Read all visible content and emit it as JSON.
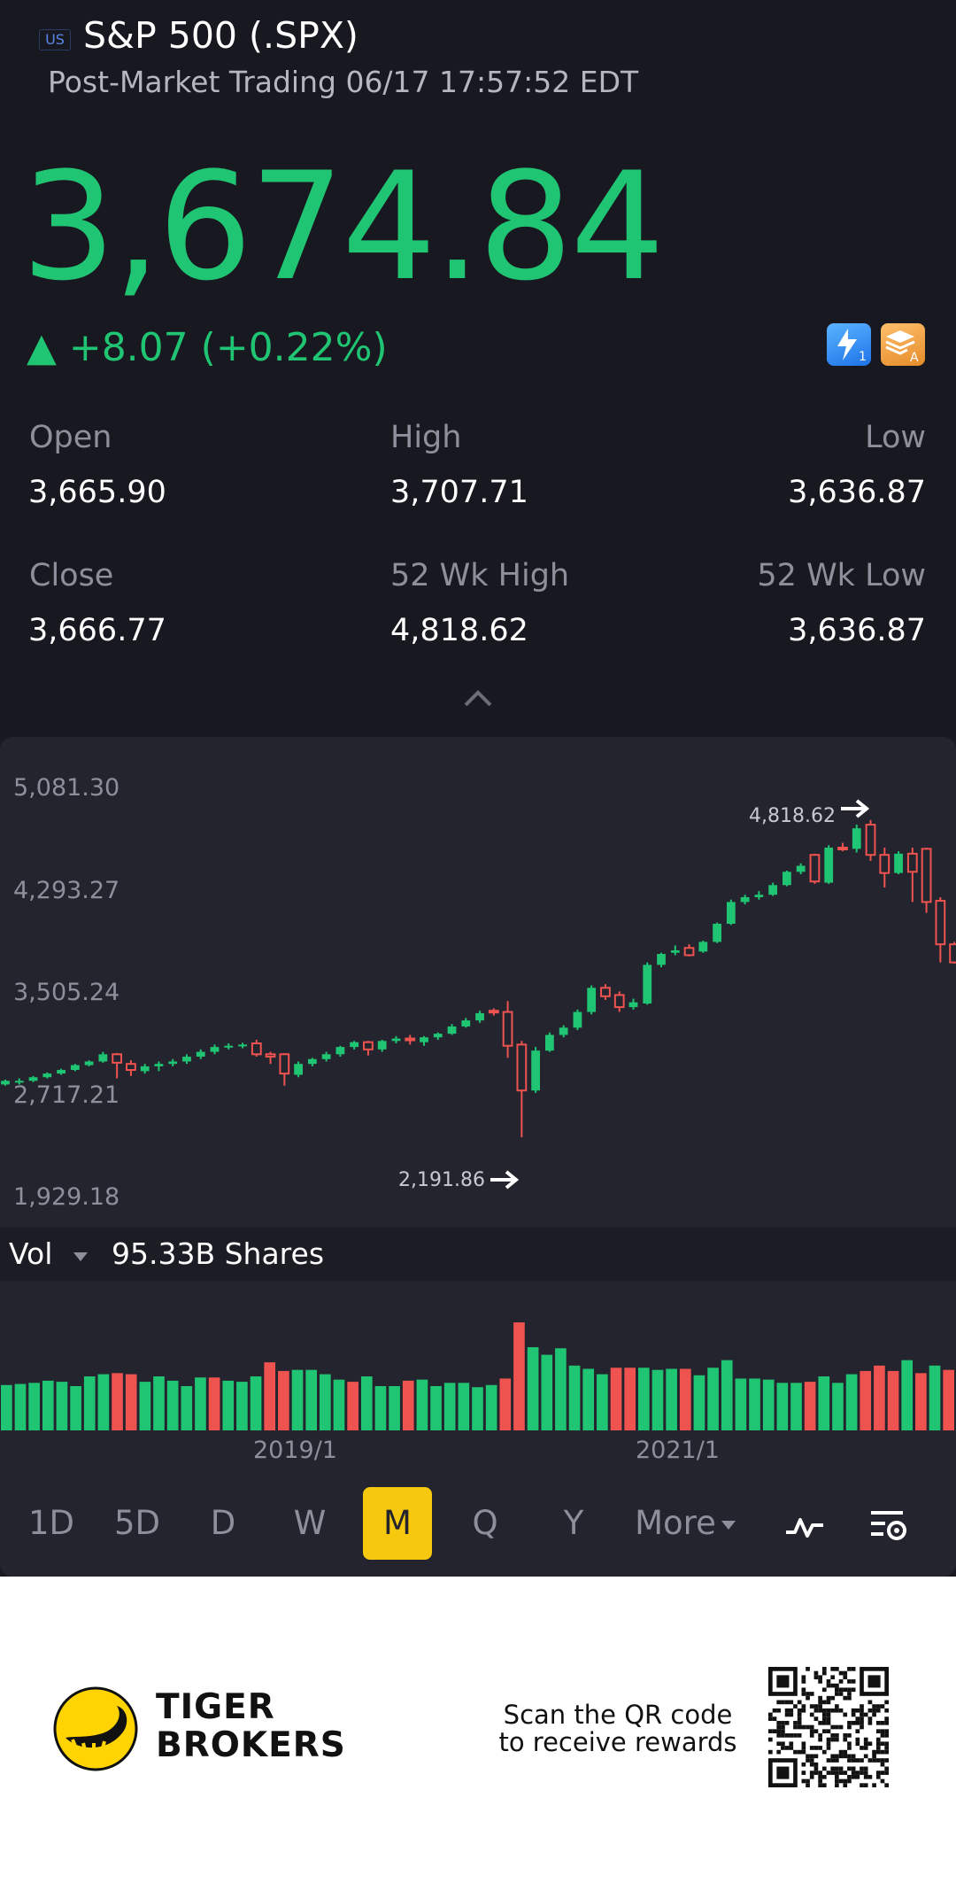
{
  "header": {
    "market_badge": "US",
    "title": "S&P 500 (.SPX)",
    "subtitle": "Post-Market Trading 06/17 17:57:52 EDT"
  },
  "quote": {
    "price": "3,674.84",
    "change": "▲ +8.07 (+0.22%)",
    "accent_color": "#20c573",
    "down_color": "#ef5350"
  },
  "badges": {
    "lightning_level": "1",
    "stack_grade": "A"
  },
  "stats": {
    "open_label": "Open",
    "open_value": "3,665.90",
    "high_label": "High",
    "high_value": "3,707.71",
    "low_label": "Low",
    "low_value": "3,636.87",
    "close_label": "Close",
    "close_value": "3,666.77",
    "wk52_high_label": "52 Wk High",
    "wk52_high_value": "4,818.62",
    "wk52_low_label": "52 Wk Low",
    "wk52_low_value": "3,636.87"
  },
  "chart": {
    "y_ticks": [
      "5,081.30",
      "4,293.27",
      "3,505.24",
      "2,717.21",
      "1,929.18"
    ],
    "max_marker": "4,818.62",
    "min_marker": "2,191.86",
    "volume_label": "Vol",
    "volume_value": "95.33B Shares",
    "date_labels": [
      "2019/1",
      "2021/1"
    ]
  },
  "chart_data": {
    "type": "candlestick",
    "ylim": [
      1929.18,
      5081.3
    ],
    "candles": [
      {
        "o": 2630,
        "c": 2660,
        "h": 2670,
        "l": 2620
      },
      {
        "o": 2650,
        "c": 2660,
        "h": 2680,
        "l": 2630
      },
      {
        "o": 2660,
        "c": 2690,
        "h": 2700,
        "l": 2650
      },
      {
        "o": 2690,
        "c": 2720,
        "h": 2730,
        "l": 2680
      },
      {
        "o": 2720,
        "c": 2750,
        "h": 2760,
        "l": 2710
      },
      {
        "o": 2750,
        "c": 2790,
        "h": 2800,
        "l": 2740
      },
      {
        "o": 2790,
        "c": 2820,
        "h": 2830,
        "l": 2780
      },
      {
        "o": 2820,
        "c": 2880,
        "h": 2900,
        "l": 2810
      },
      {
        "o": 2880,
        "c": 2810,
        "h": 2890,
        "l": 2680
      },
      {
        "o": 2800,
        "c": 2750,
        "h": 2830,
        "l": 2700
      },
      {
        "o": 2740,
        "c": 2780,
        "h": 2800,
        "l": 2720
      },
      {
        "o": 2780,
        "c": 2800,
        "h": 2820,
        "l": 2740
      },
      {
        "o": 2800,
        "c": 2820,
        "h": 2840,
        "l": 2780
      },
      {
        "o": 2820,
        "c": 2860,
        "h": 2880,
        "l": 2800
      },
      {
        "o": 2860,
        "c": 2900,
        "h": 2920,
        "l": 2840
      },
      {
        "o": 2900,
        "c": 2940,
        "h": 2960,
        "l": 2880
      },
      {
        "o": 2940,
        "c": 2950,
        "h": 2970,
        "l": 2920
      },
      {
        "o": 2950,
        "c": 2960,
        "h": 2975,
        "l": 2930
      },
      {
        "o": 2970,
        "c": 2880,
        "h": 3000,
        "l": 2860
      },
      {
        "o": 2880,
        "c": 2860,
        "h": 2900,
        "l": 2800
      },
      {
        "o": 2880,
        "c": 2720,
        "h": 2890,
        "l": 2620
      },
      {
        "o": 2710,
        "c": 2800,
        "h": 2820,
        "l": 2690
      },
      {
        "o": 2800,
        "c": 2840,
        "h": 2850,
        "l": 2780
      },
      {
        "o": 2840,
        "c": 2880,
        "h": 2900,
        "l": 2820
      },
      {
        "o": 2880,
        "c": 2940,
        "h": 2950,
        "l": 2860
      },
      {
        "o": 2940,
        "c": 2980,
        "h": 2990,
        "l": 2920
      },
      {
        "o": 2980,
        "c": 2920,
        "h": 2990,
        "l": 2870
      },
      {
        "o": 2920,
        "c": 2990,
        "h": 3000,
        "l": 2900
      },
      {
        "o": 2990,
        "c": 3010,
        "h": 3030,
        "l": 2970
      },
      {
        "o": 3010,
        "c": 3000,
        "h": 3040,
        "l": 2960
      },
      {
        "o": 2980,
        "c": 3020,
        "h": 3030,
        "l": 2950
      },
      {
        "o": 3020,
        "c": 3050,
        "h": 3060,
        "l": 3000
      },
      {
        "o": 3050,
        "c": 3110,
        "h": 3130,
        "l": 3040
      },
      {
        "o": 3110,
        "c": 3160,
        "h": 3180,
        "l": 3100
      },
      {
        "o": 3160,
        "c": 3220,
        "h": 3240,
        "l": 3140
      },
      {
        "o": 3240,
        "c": 3230,
        "h": 3260,
        "l": 3200
      },
      {
        "o": 3230,
        "c": 2950,
        "h": 3320,
        "l": 2850
      },
      {
        "o": 2960,
        "c": 2580,
        "h": 2990,
        "l": 2191.86
      },
      {
        "o": 2580,
        "c": 2910,
        "h": 2940,
        "l": 2560
      },
      {
        "o": 2910,
        "c": 3040,
        "h": 3060,
        "l": 2900
      },
      {
        "o": 3040,
        "c": 3100,
        "h": 3120,
        "l": 3020
      },
      {
        "o": 3100,
        "c": 3230,
        "h": 3250,
        "l": 3080
      },
      {
        "o": 3230,
        "c": 3430,
        "h": 3450,
        "l": 3210
      },
      {
        "o": 3430,
        "c": 3360,
        "h": 3460,
        "l": 3330
      },
      {
        "o": 3370,
        "c": 3270,
        "h": 3400,
        "l": 3230
      },
      {
        "o": 3270,
        "c": 3310,
        "h": 3340,
        "l": 3250
      },
      {
        "o": 3300,
        "c": 3620,
        "h": 3640,
        "l": 3290
      },
      {
        "o": 3620,
        "c": 3710,
        "h": 3720,
        "l": 3600
      },
      {
        "o": 3720,
        "c": 3740,
        "h": 3780,
        "l": 3700
      },
      {
        "o": 3760,
        "c": 3700,
        "h": 3790,
        "l": 3690
      },
      {
        "o": 3730,
        "c": 3810,
        "h": 3820,
        "l": 3720
      },
      {
        "o": 3810,
        "c": 3960,
        "h": 3970,
        "l": 3800
      },
      {
        "o": 3960,
        "c": 4140,
        "h": 4160,
        "l": 3950
      },
      {
        "o": 4140,
        "c": 4180,
        "h": 4200,
        "l": 4120
      },
      {
        "o": 4180,
        "c": 4200,
        "h": 4230,
        "l": 4160
      },
      {
        "o": 4200,
        "c": 4280,
        "h": 4300,
        "l": 4190
      },
      {
        "o": 4280,
        "c": 4390,
        "h": 4400,
        "l": 4270
      },
      {
        "o": 4390,
        "c": 4440,
        "h": 4460,
        "l": 4370
      },
      {
        "o": 4530,
        "c": 4310,
        "h": 4540,
        "l": 4290
      },
      {
        "o": 4300,
        "c": 4590,
        "h": 4610,
        "l": 4290
      },
      {
        "o": 4590,
        "c": 4580,
        "h": 4630,
        "l": 4560
      },
      {
        "o": 4580,
        "c": 4750,
        "h": 4780,
        "l": 4550
      },
      {
        "o": 4780,
        "c": 4530,
        "h": 4818.62,
        "l": 4480
      },
      {
        "o": 4530,
        "c": 4380,
        "h": 4590,
        "l": 4260
      },
      {
        "o": 4380,
        "c": 4540,
        "h": 4560,
        "l": 4370
      },
      {
        "o": 4540,
        "c": 4390,
        "h": 4590,
        "l": 4140
      },
      {
        "o": 4580,
        "c": 4140,
        "h": 4590,
        "l": 4050
      },
      {
        "o": 4150,
        "c": 3790,
        "h": 4180,
        "l": 3640
      },
      {
        "o": 3790,
        "c": 3640,
        "h": 3810,
        "l": 3630
      }
    ],
    "volume": [
      {
        "v": 0.42,
        "up": true
      },
      {
        "v": 0.43,
        "up": true
      },
      {
        "v": 0.44,
        "up": true
      },
      {
        "v": 0.46,
        "up": true
      },
      {
        "v": 0.45,
        "up": true
      },
      {
        "v": 0.41,
        "up": true
      },
      {
        "v": 0.5,
        "up": true
      },
      {
        "v": 0.52,
        "up": true
      },
      {
        "v": 0.53,
        "up": false
      },
      {
        "v": 0.52,
        "up": false
      },
      {
        "v": 0.45,
        "up": true
      },
      {
        "v": 0.5,
        "up": true
      },
      {
        "v": 0.46,
        "up": true
      },
      {
        "v": 0.41,
        "up": true
      },
      {
        "v": 0.49,
        "up": true
      },
      {
        "v": 0.49,
        "up": false
      },
      {
        "v": 0.46,
        "up": true
      },
      {
        "v": 0.45,
        "up": true
      },
      {
        "v": 0.5,
        "up": true
      },
      {
        "v": 0.63,
        "up": false
      },
      {
        "v": 0.55,
        "up": false
      },
      {
        "v": 0.56,
        "up": true
      },
      {
        "v": 0.56,
        "up": true
      },
      {
        "v": 0.52,
        "up": true
      },
      {
        "v": 0.47,
        "up": true
      },
      {
        "v": 0.45,
        "up": false
      },
      {
        "v": 0.5,
        "up": true
      },
      {
        "v": 0.41,
        "up": true
      },
      {
        "v": 0.41,
        "up": true
      },
      {
        "v": 0.46,
        "up": false
      },
      {
        "v": 0.47,
        "up": true
      },
      {
        "v": 0.41,
        "up": true
      },
      {
        "v": 0.44,
        "up": true
      },
      {
        "v": 0.44,
        "up": true
      },
      {
        "v": 0.4,
        "up": true
      },
      {
        "v": 0.42,
        "up": true
      },
      {
        "v": 0.48,
        "up": false
      },
      {
        "v": 1.0,
        "up": false
      },
      {
        "v": 0.77,
        "up": true
      },
      {
        "v": 0.7,
        "up": true
      },
      {
        "v": 0.76,
        "up": true
      },
      {
        "v": 0.6,
        "up": true
      },
      {
        "v": 0.57,
        "up": true
      },
      {
        "v": 0.52,
        "up": true
      },
      {
        "v": 0.58,
        "up": false
      },
      {
        "v": 0.58,
        "up": false
      },
      {
        "v": 0.58,
        "up": true
      },
      {
        "v": 0.56,
        "up": true
      },
      {
        "v": 0.57,
        "up": true
      },
      {
        "v": 0.57,
        "up": false
      },
      {
        "v": 0.51,
        "up": true
      },
      {
        "v": 0.58,
        "up": true
      },
      {
        "v": 0.65,
        "up": true
      },
      {
        "v": 0.48,
        "up": true
      },
      {
        "v": 0.48,
        "up": true
      },
      {
        "v": 0.47,
        "up": true
      },
      {
        "v": 0.44,
        "up": true
      },
      {
        "v": 0.44,
        "up": true
      },
      {
        "v": 0.45,
        "up": false
      },
      {
        "v": 0.5,
        "up": true
      },
      {
        "v": 0.44,
        "up": true
      },
      {
        "v": 0.52,
        "up": true
      },
      {
        "v": 0.55,
        "up": false
      },
      {
        "v": 0.6,
        "up": false
      },
      {
        "v": 0.55,
        "up": false
      },
      {
        "v": 0.65,
        "up": true
      },
      {
        "v": 0.53,
        "up": false
      },
      {
        "v": 0.6,
        "up": true
      },
      {
        "v": 0.56,
        "up": false
      }
    ]
  },
  "periods": {
    "items": [
      "1D",
      "5D",
      "D",
      "W",
      "M",
      "Q",
      "Y",
      "More"
    ],
    "active": "M"
  },
  "footer": {
    "brand_line1": "TIGER",
    "brand_line2": "BROKERS",
    "scan_line1": "Scan the QR code",
    "scan_line2": "to receive rewards"
  }
}
